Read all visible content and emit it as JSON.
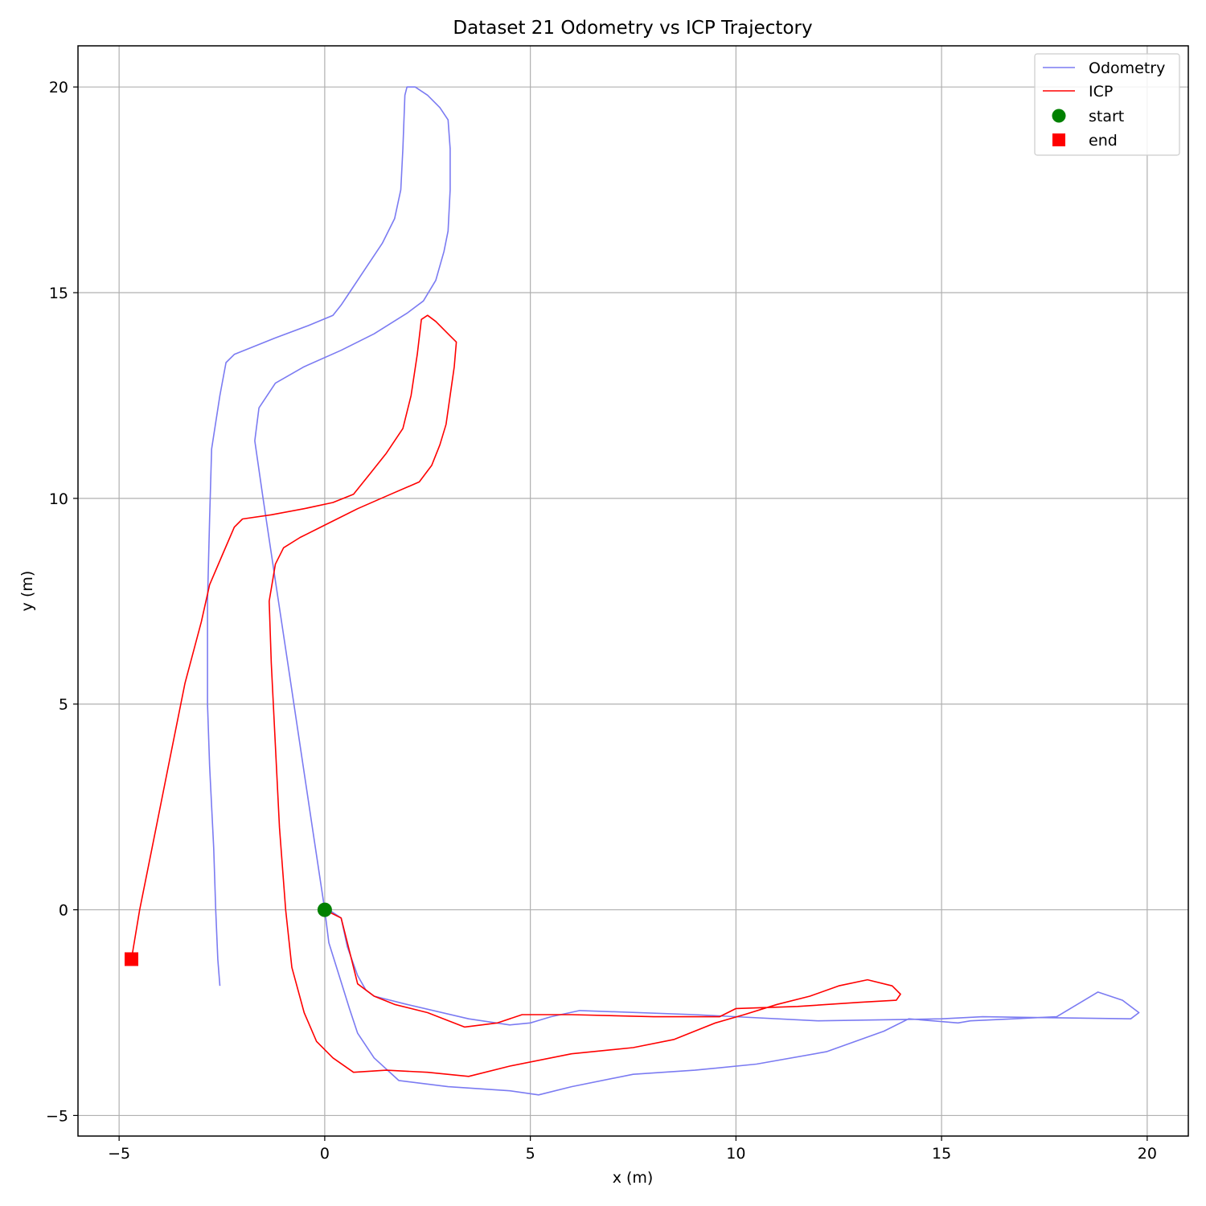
{
  "chart_data": {
    "type": "line",
    "title": "Dataset 21 Odometry vs ICP Trajectory",
    "xlabel": "x (m)",
    "ylabel": "y (m)",
    "xlim": [
      -6,
      21
    ],
    "ylim": [
      -5.5,
      21
    ],
    "xticks": [
      -5,
      0,
      5,
      10,
      15,
      20
    ],
    "yticks": [
      -5,
      0,
      5,
      10,
      15,
      20
    ],
    "grid": true,
    "legend_position": "top-right",
    "series": [
      {
        "name": "Odometry",
        "color": "#7b7bf2",
        "style": "line",
        "points": [
          [
            0,
            0
          ],
          [
            -0.3,
            2
          ],
          [
            -0.6,
            4
          ],
          [
            -0.9,
            6
          ],
          [
            -1.2,
            8
          ],
          [
            -1.5,
            10
          ],
          [
            -1.7,
            11.4
          ],
          [
            -1.6,
            12.2
          ],
          [
            -1.2,
            12.8
          ],
          [
            -0.5,
            13.2
          ],
          [
            0.4,
            13.6
          ],
          [
            1.2,
            14.0
          ],
          [
            2.0,
            14.5
          ],
          [
            2.4,
            14.8
          ],
          [
            2.7,
            15.3
          ],
          [
            2.9,
            16.0
          ],
          [
            3.0,
            16.5
          ],
          [
            3.05,
            17.5
          ],
          [
            3.05,
            18.5
          ],
          [
            3.0,
            19.2
          ],
          [
            2.8,
            19.5
          ],
          [
            2.5,
            19.8
          ],
          [
            2.2,
            20.0
          ],
          [
            2.0,
            20.0
          ],
          [
            1.95,
            19.8
          ],
          [
            1.9,
            18.5
          ],
          [
            1.85,
            17.5
          ],
          [
            1.7,
            16.8
          ],
          [
            1.4,
            16.2
          ],
          [
            1.0,
            15.6
          ],
          [
            0.6,
            15.0
          ],
          [
            0.4,
            14.7
          ],
          [
            0.2,
            14.45
          ],
          [
            -0.4,
            14.2
          ],
          [
            -1.2,
            13.9
          ],
          [
            -2.2,
            13.5
          ],
          [
            -2.4,
            13.3
          ],
          [
            -2.55,
            12.5
          ],
          [
            -2.75,
            11.2
          ],
          [
            -2.8,
            9.5
          ],
          [
            -2.85,
            7.5
          ],
          [
            -2.85,
            5.0
          ],
          [
            -2.8,
            3.5
          ],
          [
            -2.7,
            1.5
          ],
          [
            -2.65,
            0
          ],
          [
            -2.6,
            -1.2
          ],
          [
            -2.55,
            -1.85
          ]
        ],
        "points_return": [
          [
            0,
            0
          ],
          [
            0.1,
            -0.8
          ],
          [
            0.35,
            -1.6
          ],
          [
            0.6,
            -2.4
          ],
          [
            0.8,
            -3.0
          ],
          [
            1.2,
            -3.6
          ],
          [
            1.8,
            -4.15
          ],
          [
            3.0,
            -4.3
          ],
          [
            4.5,
            -4.4
          ],
          [
            5.2,
            -4.5
          ],
          [
            6.0,
            -4.3
          ],
          [
            7.5,
            -4.0
          ],
          [
            9.0,
            -3.9
          ],
          [
            10.5,
            -3.75
          ],
          [
            12.2,
            -3.45
          ],
          [
            13.6,
            -2.95
          ],
          [
            14.2,
            -2.65
          ],
          [
            15.4,
            -2.75
          ],
          [
            15.7,
            -2.7
          ],
          [
            17.8,
            -2.6
          ],
          [
            18.8,
            -2.0
          ],
          [
            19.4,
            -2.2
          ],
          [
            19.8,
            -2.5
          ],
          [
            19.6,
            -2.65
          ],
          [
            16.0,
            -2.6
          ],
          [
            15.0,
            -2.65
          ],
          [
            12.0,
            -2.7
          ],
          [
            9.0,
            -2.55
          ],
          [
            6.2,
            -2.45
          ],
          [
            5.5,
            -2.6
          ],
          [
            5.0,
            -2.75
          ],
          [
            4.5,
            -2.8
          ],
          [
            3.5,
            -2.65
          ],
          [
            2.0,
            -2.3
          ],
          [
            1.2,
            -2.1
          ],
          [
            1.0,
            -1.95
          ],
          [
            0.8,
            -1.6
          ],
          [
            0.55,
            -0.9
          ],
          [
            0.4,
            -0.2
          ],
          [
            0.1,
            0.0
          ]
        ]
      },
      {
        "name": "ICP",
        "color": "#ff0000",
        "style": "line",
        "points": [
          [
            0,
            0
          ],
          [
            0.4,
            -0.2
          ],
          [
            0.6,
            -1.0
          ],
          [
            0.8,
            -1.8
          ],
          [
            1.2,
            -2.1
          ],
          [
            1.7,
            -2.3
          ],
          [
            2.5,
            -2.5
          ],
          [
            3.4,
            -2.85
          ],
          [
            4.2,
            -2.75
          ],
          [
            4.8,
            -2.55
          ],
          [
            6.0,
            -2.55
          ],
          [
            8.0,
            -2.6
          ],
          [
            9.6,
            -2.6
          ],
          [
            10.0,
            -2.4
          ],
          [
            11.5,
            -2.35
          ],
          [
            13.0,
            -2.25
          ],
          [
            13.9,
            -2.2
          ],
          [
            14.0,
            -2.05
          ],
          [
            13.8,
            -1.85
          ],
          [
            13.2,
            -1.7
          ],
          [
            12.5,
            -1.85
          ],
          [
            11.8,
            -2.1
          ],
          [
            11.0,
            -2.3
          ],
          [
            10.2,
            -2.55
          ],
          [
            9.5,
            -2.75
          ],
          [
            9.0,
            -2.95
          ],
          [
            8.5,
            -3.15
          ],
          [
            7.5,
            -3.35
          ],
          [
            6.0,
            -3.5
          ],
          [
            4.5,
            -3.8
          ],
          [
            3.5,
            -4.05
          ],
          [
            2.5,
            -3.95
          ],
          [
            1.5,
            -3.9
          ],
          [
            0.7,
            -3.95
          ],
          [
            0.2,
            -3.6
          ],
          [
            -0.2,
            -3.2
          ],
          [
            -0.5,
            -2.5
          ],
          [
            -0.8,
            -1.4
          ],
          [
            -0.95,
            0
          ],
          [
            -1.1,
            2
          ],
          [
            -1.2,
            4
          ],
          [
            -1.3,
            6
          ],
          [
            -1.35,
            7.5
          ],
          [
            -1.2,
            8.4
          ],
          [
            -1.0,
            8.8
          ],
          [
            -0.6,
            9.05
          ],
          [
            0.0,
            9.35
          ],
          [
            0.8,
            9.75
          ],
          [
            1.6,
            10.1
          ],
          [
            2.3,
            10.4
          ],
          [
            2.6,
            10.8
          ],
          [
            2.8,
            11.3
          ],
          [
            2.95,
            11.8
          ],
          [
            3.05,
            12.5
          ],
          [
            3.15,
            13.2
          ],
          [
            3.2,
            13.8
          ],
          [
            3.0,
            14.0
          ],
          [
            2.7,
            14.3
          ],
          [
            2.5,
            14.45
          ],
          [
            2.35,
            14.35
          ],
          [
            2.25,
            13.5
          ],
          [
            2.1,
            12.5
          ],
          [
            1.9,
            11.7
          ],
          [
            1.5,
            11.1
          ],
          [
            1.1,
            10.6
          ],
          [
            0.7,
            10.1
          ],
          [
            0.2,
            9.9
          ],
          [
            -0.5,
            9.75
          ],
          [
            -1.3,
            9.6
          ],
          [
            -2.0,
            9.5
          ],
          [
            -2.2,
            9.3
          ],
          [
            -2.5,
            8.6
          ],
          [
            -2.8,
            7.9
          ],
          [
            -3.0,
            7.0
          ],
          [
            -3.4,
            5.5
          ],
          [
            -3.8,
            3.5
          ],
          [
            -4.2,
            1.5
          ],
          [
            -4.5,
            0
          ],
          [
            -4.7,
            -1.2
          ]
        ]
      }
    ],
    "markers": [
      {
        "name": "start",
        "x": 0,
        "y": 0,
        "shape": "circle",
        "color": "#008000"
      },
      {
        "name": "end",
        "x": -4.7,
        "y": -1.2,
        "shape": "square",
        "color": "#ff0000"
      }
    ]
  }
}
